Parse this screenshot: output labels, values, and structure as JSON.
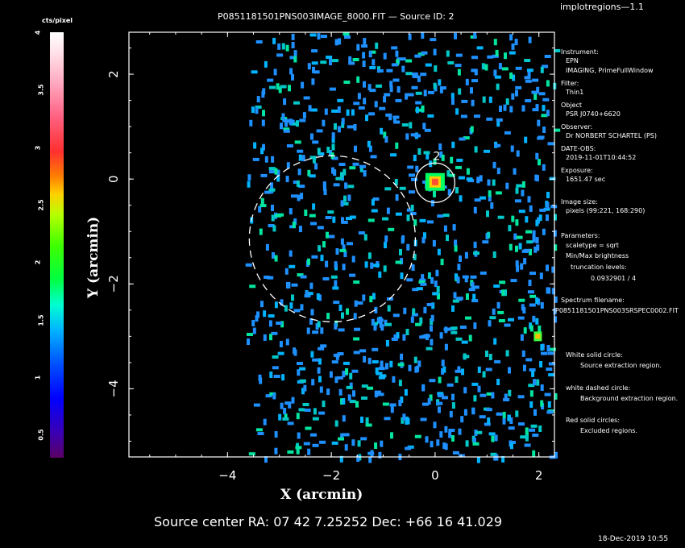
{
  "program": "implotregions—1.1",
  "title": "P0851181501PNS003IMAGE_8000.FIT  —  Source ID: 2",
  "colorbar": {
    "label": "cts/pixel",
    "ticks": [
      "0.5",
      "1",
      "1.5",
      "2",
      "2.5",
      "3",
      "3.5",
      "4"
    ]
  },
  "chart_data": {
    "type": "heatmap",
    "xlabel": "X (arcmin)",
    "ylabel": "Y (arcmin)",
    "xlim": [
      -5.9,
      2.3
    ],
    "ylim": [
      -5.3,
      2.8
    ],
    "x_ticks": [
      "−4",
      "−2",
      "0",
      "2"
    ],
    "y_ticks": [
      "2",
      "0",
      "−2",
      "−4"
    ],
    "source_label": "2",
    "source_region": {
      "shape": "circle",
      "style": "white solid",
      "center": [
        0.0,
        -0.07
      ],
      "radius": 0.38
    },
    "background_region": {
      "shape": "circle",
      "style": "white dashed",
      "center": [
        -1.98,
        -1.14
      ],
      "radius": 1.6
    },
    "bright_spots": [
      {
        "x": 0.0,
        "y": -0.07,
        "level": "high"
      },
      {
        "x": 1.98,
        "y": -3.0,
        "level": "medium"
      }
    ],
    "colorbar_range": [
      0.3,
      4.0
    ],
    "colorbar_units": "cts/pixel"
  },
  "info": {
    "instrument_label": "Instrument:",
    "instrument": "EPN",
    "mode": "IMAGING, PrimeFullWindow",
    "filter_label": "Filter:",
    "filter": "Thin1",
    "object_label": "Object",
    "object": "PSR J0740+6620",
    "observer_label": "Observer:",
    "observer": "Dr NORBERT SCHARTEL (PS)",
    "date_label": "DATE-OBS:",
    "date": "2019-11-01T10:44:52",
    "exposure_label": "Exposure:",
    "exposure": "1651.47 sec",
    "imsize_label": "Image size:",
    "imsize": "pixels (99:221, 168:290)",
    "params_label": "Parameters:",
    "scaletype": "scaletype = sqrt",
    "minmax": "Min/Max brightness",
    "trunc": "truncation levels:",
    "levels": "0.0932901 / 4",
    "spectrum_label": "Spectrum filename:",
    "spectrum": "P0851181501PNS003SRSPEC0002.FIT"
  },
  "legend": {
    "solid_label": "White solid circle:",
    "solid_desc": "Source extraction region.",
    "dashed_label": "white dashed circle:",
    "dashed_desc": "Background extraction region.",
    "red_label": "Red solid circles:",
    "red_desc": "Excluded regions."
  },
  "footer": {
    "coords": "Source center RA: 07 42 7.25252 Dec: +66 16 41.029",
    "timestamp": "18-Dec-2019 10:55"
  }
}
